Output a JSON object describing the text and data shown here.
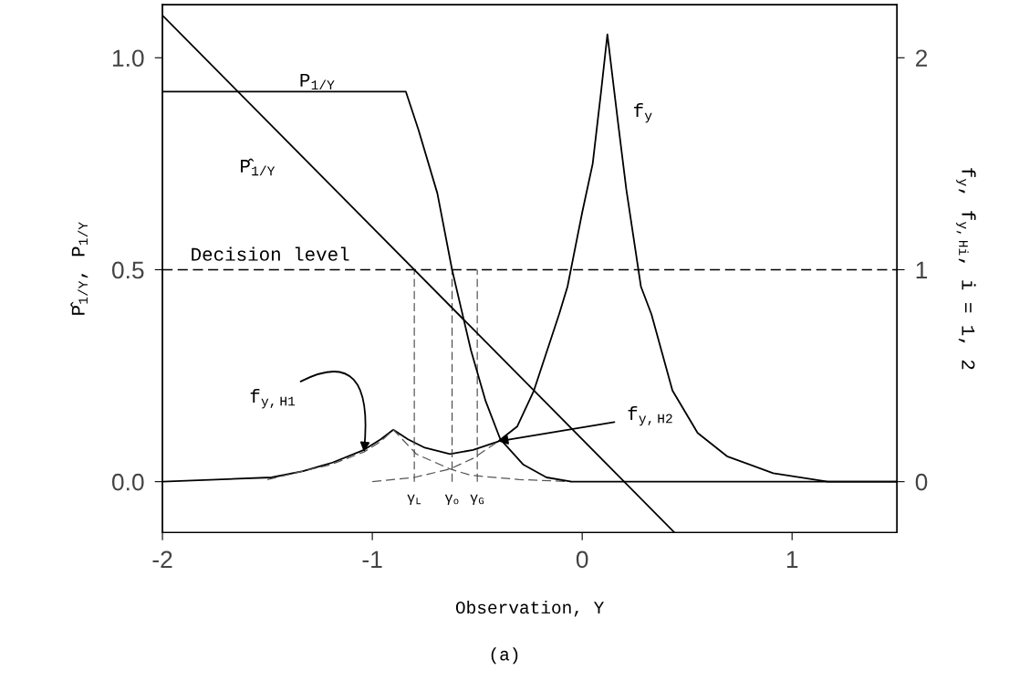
{
  "chart_data": {
    "type": "line",
    "xlabel": "Observation, Y",
    "ylabel": "P̂$_{1/Y}$, P$_{1/Y}$",
    "y2label": "f$_{y}$, f$_{y,Hi}$, i = 1, 2",
    "xlim": [
      -2,
      1.5
    ],
    "xticks": [
      -2,
      -1,
      0,
      1
    ],
    "ylim": [
      -0.12,
      1.125
    ],
    "yticks": [
      {
        "value": 0,
        "label": "0.0"
      },
      {
        "value": 0.5,
        "label": "0.5"
      },
      {
        "value": 1,
        "label": "1.0"
      }
    ],
    "y2lim": [
      -0.24,
      2.25
    ],
    "y2ticks": [
      0,
      1,
      2
    ],
    "grid": false,
    "marker": "none",
    "series": [
      {
        "name": "P$_{1/Y}$",
        "color": "#000000",
        "x": [
          -2,
          -0.84,
          -0.78,
          -0.69,
          -0.62,
          -0.53,
          -0.46,
          -0.39,
          -0.28,
          -0.17,
          -0.05,
          1.5
        ],
        "values": [
          0.92,
          0.92,
          0.83,
          0.68,
          0.5,
          0.31,
          0.19,
          0.1,
          0.04,
          0.01,
          0,
          0
        ]
      },
      {
        "name": "P̂$_{1/Y}$",
        "color": "#000000",
        "x": [
          -2,
          0.44
        ],
        "values": [
          1.1,
          -0.12
        ]
      },
      {
        "name": "f$_{y}$",
        "color": "#000000",
        "axis": "y2",
        "x": [
          -2,
          -1.48,
          -1.33,
          -1.19,
          -1.04,
          -0.96,
          -0.9,
          -0.83,
          -0.75,
          -0.63,
          -0.52,
          -0.4,
          -0.31,
          -0.23,
          -0.11,
          -0.07,
          0,
          0.05,
          0.09,
          0.12,
          0.17,
          0.21,
          0.28,
          0.33,
          0.43,
          0.55,
          0.69,
          0.91,
          1.17,
          1.5
        ],
        "values": [
          0,
          0.02,
          0.05,
          0.09,
          0.15,
          0.2,
          0.245,
          0.2,
          0.16,
          0.13,
          0.15,
          0.19,
          0.26,
          0.43,
          0.79,
          0.92,
          1.27,
          1.5,
          1.84,
          2.11,
          1.7,
          1.38,
          0.92,
          0.79,
          0.43,
          0.23,
          0.12,
          0.04,
          0,
          0
        ]
      },
      {
        "name": "f$_{y,H1}$",
        "color": "#555555",
        "axis": "y2",
        "line_style": "dashed",
        "x": [
          -1.5,
          -1.2,
          -1.04,
          -0.96,
          -0.9,
          -0.79,
          -0.63,
          -0.53,
          -0.3,
          -0.05
        ],
        "values": [
          0.01,
          0.08,
          0.14,
          0.19,
          0.245,
          0.13,
          0.06,
          0.03,
          0.01,
          0
        ]
      },
      {
        "name": "f$_{y,H2}$",
        "color": "#555555",
        "axis": "y2",
        "line_style": "dashed",
        "x": [
          -1.0,
          -0.8,
          -0.63,
          -0.52,
          -0.4
        ],
        "values": [
          0,
          0.02,
          0.06,
          0.11,
          0.19
        ]
      }
    ],
    "ref_lines": [
      {
        "axis": "y",
        "value": 0.5,
        "label": "Decision level",
        "color": "#000000",
        "line_style": "dashed"
      },
      {
        "axis": "x",
        "value": -0.8,
        "label": "γ$_{L}$",
        "color": "#444444",
        "line_style": "dashed"
      },
      {
        "axis": "x",
        "value": -0.62,
        "label": "γ$_{o}$",
        "color": "#444444",
        "line_style": "dashed"
      },
      {
        "axis": "x",
        "value": -0.5,
        "label": "γ$_{G}$",
        "color": "#444444",
        "line_style": "dashed"
      }
    ],
    "annotations": [
      "(a)"
    ]
  }
}
